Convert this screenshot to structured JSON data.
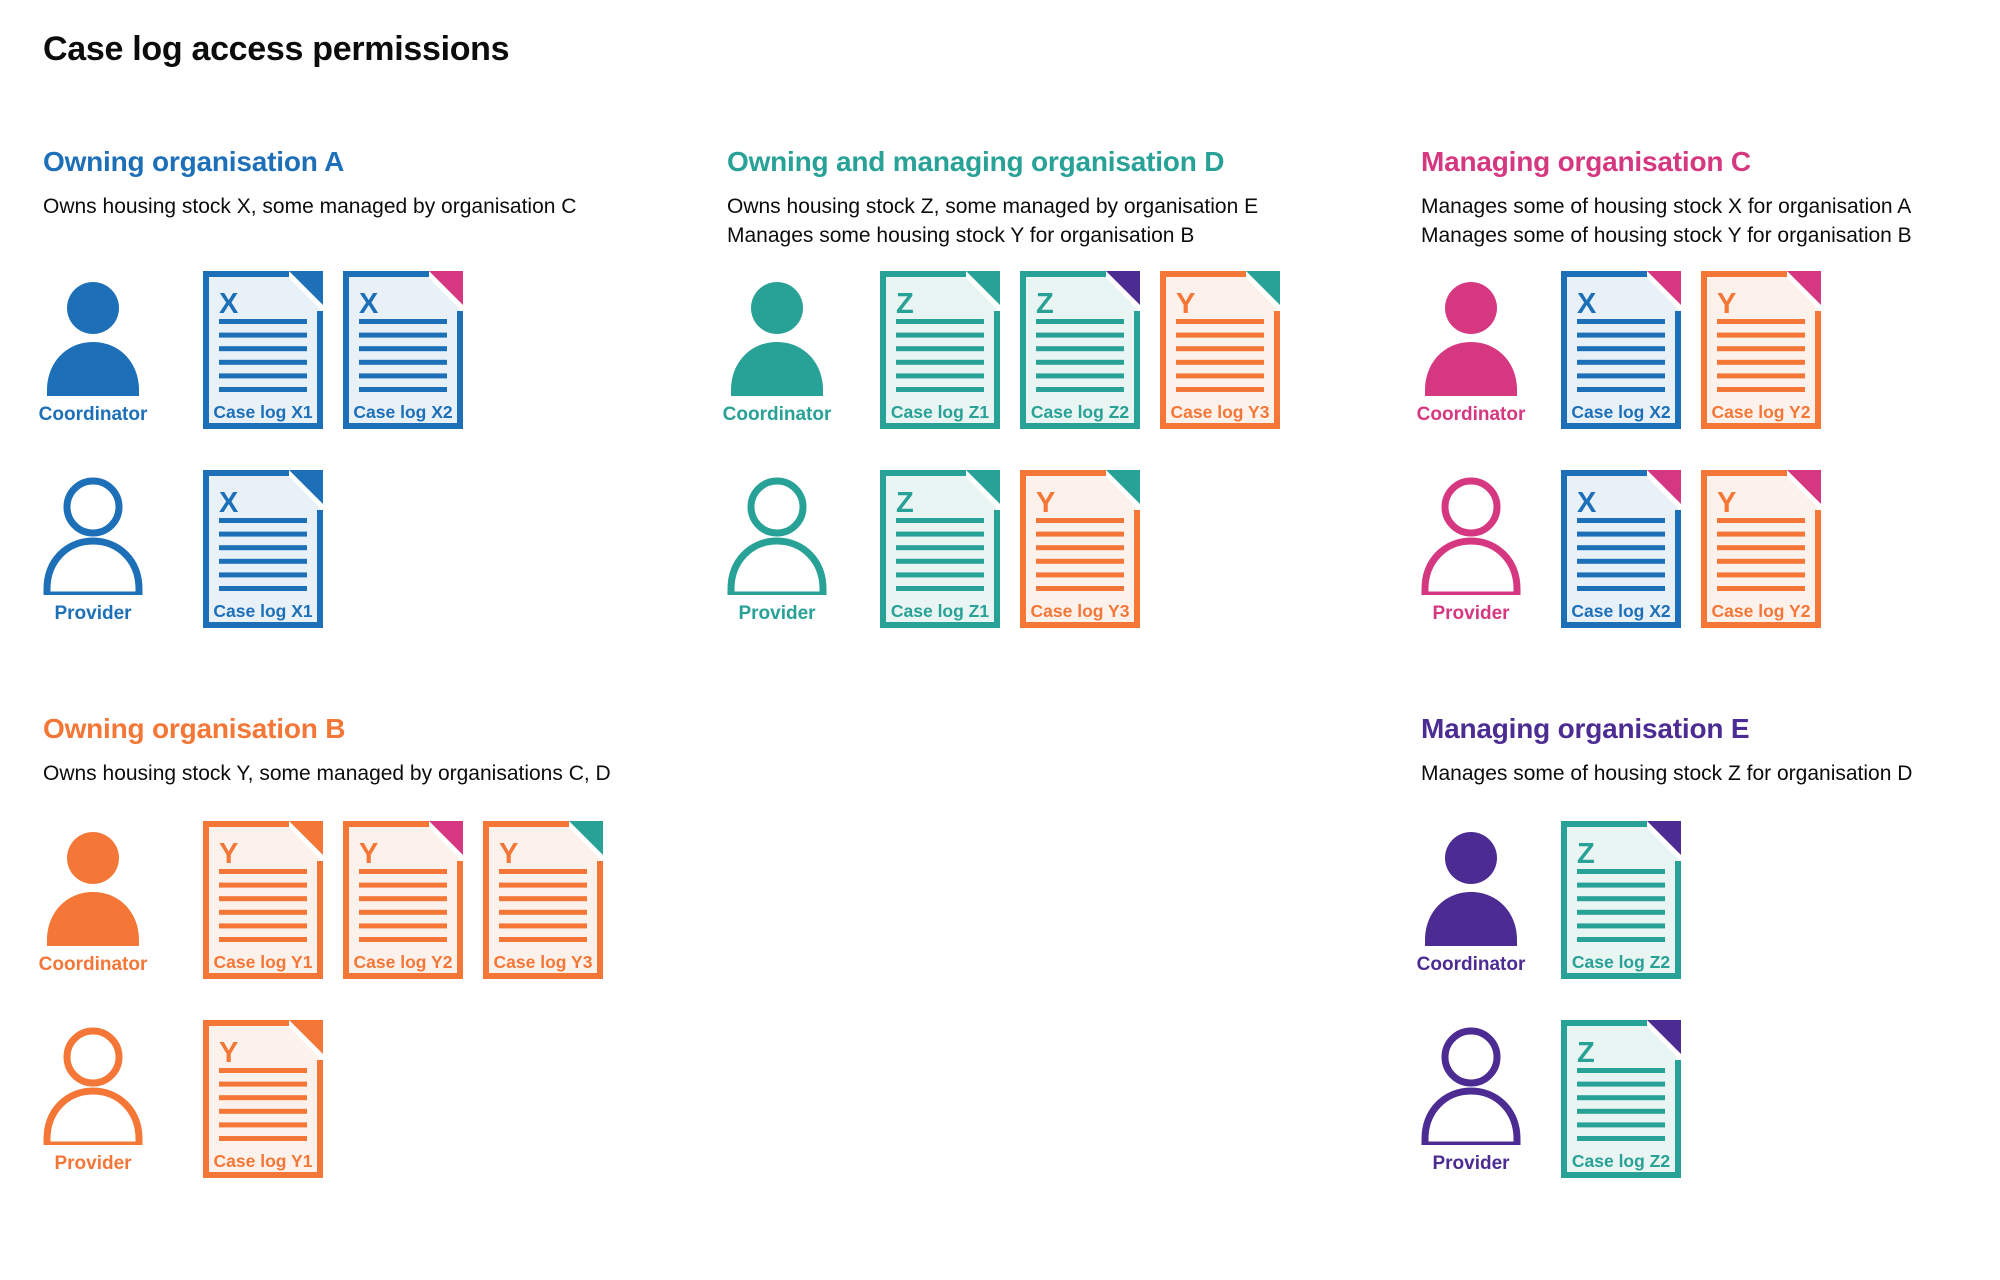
{
  "title": "Case log access permissions",
  "colors": {
    "blue": "#1d70b8",
    "teal": "#28a197",
    "orange": "#f47738",
    "pink": "#d53880",
    "purple": "#4c2c92",
    "text": "#0b0c0c",
    "background": "#ffffff",
    "blue_tint": "#e8f1f8",
    "teal_tint": "#e9f5f2",
    "orange_tint": "#fdf2eb"
  },
  "organisations": [
    {
      "id": "org-a",
      "title": "Owning organisation A",
      "color": "blue",
      "description": [
        "Owns housing stock X, some managed by organisation C"
      ],
      "rows": [
        {
          "role": "Coordinator",
          "person_icon": "person-filled-icon",
          "docs": [
            {
              "letter": "X",
              "label": "Case log X1",
              "doc_color": "blue",
              "fold_color": "blue"
            },
            {
              "letter": "X",
              "label": "Case log X2",
              "doc_color": "blue",
              "fold_color": "pink"
            }
          ]
        },
        {
          "role": "Provider",
          "person_icon": "person-outline-icon",
          "docs": [
            {
              "letter": "X",
              "label": "Case log X1",
              "doc_color": "blue",
              "fold_color": "blue"
            }
          ]
        }
      ]
    },
    {
      "id": "org-d",
      "title": "Owning and managing organisation D",
      "color": "teal",
      "description": [
        "Owns housing stock Z, some managed by organisation E",
        "Manages some housing stock Y for organisation B"
      ],
      "rows": [
        {
          "role": "Coordinator",
          "person_icon": "person-filled-icon",
          "docs": [
            {
              "letter": "Z",
              "label": "Case log Z1",
              "doc_color": "teal",
              "fold_color": "teal"
            },
            {
              "letter": "Z",
              "label": "Case log Z2",
              "doc_color": "teal",
              "fold_color": "purple"
            },
            {
              "letter": "Y",
              "label": "Case log Y3",
              "doc_color": "orange",
              "fold_color": "teal"
            }
          ]
        },
        {
          "role": "Provider",
          "person_icon": "person-outline-icon",
          "docs": [
            {
              "letter": "Z",
              "label": "Case log Z1",
              "doc_color": "teal",
              "fold_color": "teal"
            },
            {
              "letter": "Y",
              "label": "Case log Y3",
              "doc_color": "orange",
              "fold_color": "teal"
            }
          ]
        }
      ]
    },
    {
      "id": "org-c",
      "title": "Managing organisation C",
      "color": "pink",
      "description": [
        "Manages some of housing stock X for organisation A",
        "Manages some of housing stock Y for organisation B"
      ],
      "rows": [
        {
          "role": "Coordinator",
          "person_icon": "person-filled-icon",
          "docs": [
            {
              "letter": "X",
              "label": "Case log X2",
              "doc_color": "blue",
              "fold_color": "pink"
            },
            {
              "letter": "Y",
              "label": "Case log Y2",
              "doc_color": "orange",
              "fold_color": "pink"
            }
          ]
        },
        {
          "role": "Provider",
          "person_icon": "person-outline-icon",
          "docs": [
            {
              "letter": "X",
              "label": "Case log X2",
              "doc_color": "blue",
              "fold_color": "pink"
            },
            {
              "letter": "Y",
              "label": "Case log Y2",
              "doc_color": "orange",
              "fold_color": "pink"
            }
          ]
        }
      ]
    },
    {
      "id": "org-b",
      "title": "Owning organisation B",
      "color": "orange",
      "description": [
        "Owns housing stock Y, some managed by organisations C, D"
      ],
      "rows": [
        {
          "role": "Coordinator",
          "person_icon": "person-filled-icon",
          "docs": [
            {
              "letter": "Y",
              "label": "Case log Y1",
              "doc_color": "orange",
              "fold_color": "orange"
            },
            {
              "letter": "Y",
              "label": "Case log Y2",
              "doc_color": "orange",
              "fold_color": "pink"
            },
            {
              "letter": "Y",
              "label": "Case log Y3",
              "doc_color": "orange",
              "fold_color": "teal"
            }
          ]
        },
        {
          "role": "Provider",
          "person_icon": "person-outline-icon",
          "docs": [
            {
              "letter": "Y",
              "label": "Case log Y1",
              "doc_color": "orange",
              "fold_color": "orange"
            }
          ]
        }
      ]
    },
    {
      "id": "org-e",
      "title": "Managing organisation E",
      "color": "purple",
      "description": [
        "Manages some of housing stock Z for organisation D"
      ],
      "rows": [
        {
          "role": "Coordinator",
          "person_icon": "person-filled-icon",
          "docs": [
            {
              "letter": "Z",
              "label": "Case log Z2",
              "doc_color": "teal",
              "fold_color": "purple"
            }
          ]
        },
        {
          "role": "Provider",
          "person_icon": "person-outline-icon",
          "docs": [
            {
              "letter": "Z",
              "label": "Case log Z2",
              "doc_color": "teal",
              "fold_color": "purple"
            }
          ]
        }
      ]
    }
  ]
}
